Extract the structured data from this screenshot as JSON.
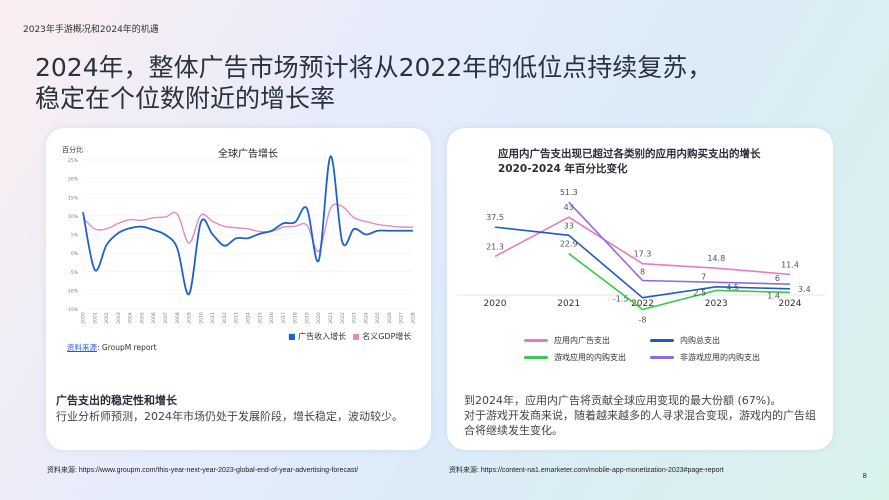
{
  "header": {
    "subtitle": "2023年手游概况和2024年的机遇",
    "title_line1": "2024年，整体广告市场预计将从2022年的低位点持续复苏，",
    "title_line2": "稳定在个位数附近的增长率"
  },
  "left": {
    "source_label": "资料来源",
    "source_text": ": GroupM report",
    "heading": "广告支出的稳定性和增长",
    "body": "行业分析师预测，2024年市场仍处于发展阶段，增长稳定，波动较少。",
    "footer_source": "资料来源: https://www.groupm.com/this-year-next-year-2023-global-end-of-year-advertising-forecast/"
  },
  "right": {
    "title_line1": "应用内广告支出现已超过各类别的应用内购买支出的增长",
    "title_line2": "2020-2024 年百分比变化",
    "body_line1": "到2024年，应用内广告将贡献全球应用变现的最大份额 (67%)。",
    "body_line2": "对于游戏开发商来说，随着越来越多的人寻求混合变现，游戏内的广告组合将继续发生变化。",
    "footer_source": "资料来源: https://content-na1.emarketer.com/mobile-app-monetization-2023#page-report"
  },
  "page_number": "8",
  "chart_data": [
    {
      "type": "line",
      "title": "全球广告增长",
      "ylabel": "百分比",
      "ylim": [
        -15,
        25
      ],
      "yticks": [
        "-15%",
        "-10%",
        "-5%",
        "0%",
        "5%",
        "10%",
        "15%",
        "20%",
        "25%"
      ],
      "grid": true,
      "legend": "bottom-right",
      "x": [
        2000,
        2001,
        2002,
        2003,
        2004,
        2005,
        2006,
        2007,
        2008,
        2009,
        2010,
        2011,
        2012,
        2013,
        2014,
        2015,
        2016,
        2017,
        2018,
        2019,
        2020,
        2021,
        2022,
        2023,
        2024,
        2025,
        2026,
        2027,
        2028
      ],
      "series": [
        {
          "name": "广告收入增长",
          "color": "#1f5fd1",
          "values": [
            11,
            -4.5,
            2.2,
            5.4,
            6.7,
            7.1,
            6.2,
            4.9,
            1.3,
            -11,
            8.3,
            5,
            2,
            4,
            4,
            5.2,
            6,
            8,
            8.3,
            12,
            -2,
            26,
            3,
            6.5,
            5,
            6,
            6,
            6,
            6
          ]
        },
        {
          "name": "名义GDP增长",
          "color": "#e58ac0",
          "values": [
            9.5,
            6.5,
            6.5,
            8,
            9,
            8.8,
            9.5,
            9.7,
            10.5,
            2.7,
            10.2,
            8.5,
            7.2,
            6.8,
            6.5,
            5.8,
            5.8,
            7,
            7.2,
            7.5,
            0.5,
            12,
            12.5,
            9.5,
            8.5,
            7.7,
            7.3,
            7,
            7
          ]
        }
      ]
    },
    {
      "type": "line",
      "title": "应用内广告支出现已超过各类别的应用内购买支出的增长 2020-2024 年百分比变化",
      "categories": [
        "2020",
        "2021",
        "2022",
        "2023",
        "2024"
      ],
      "legend": "bottom",
      "series": [
        {
          "name": "应用内广告支出",
          "color": "#e87bbd",
          "values": [
            21.3,
            43,
            17.3,
            14.8,
            11.4
          ]
        },
        {
          "name": "内购总支出",
          "color": "#1f5bc8",
          "values": [
            37.5,
            33,
            -1.5,
            4.5,
            3.4
          ]
        },
        {
          "name": "游戏应用的内购支出",
          "color": "#3ac94a",
          "values": [
            null,
            22.9,
            -8,
            2.5,
            1.4
          ]
        },
        {
          "name": "非游戏应用的内购支出",
          "color": "#8a6cf0",
          "values": [
            null,
            51.3,
            8,
            7,
            6
          ]
        }
      ]
    }
  ]
}
